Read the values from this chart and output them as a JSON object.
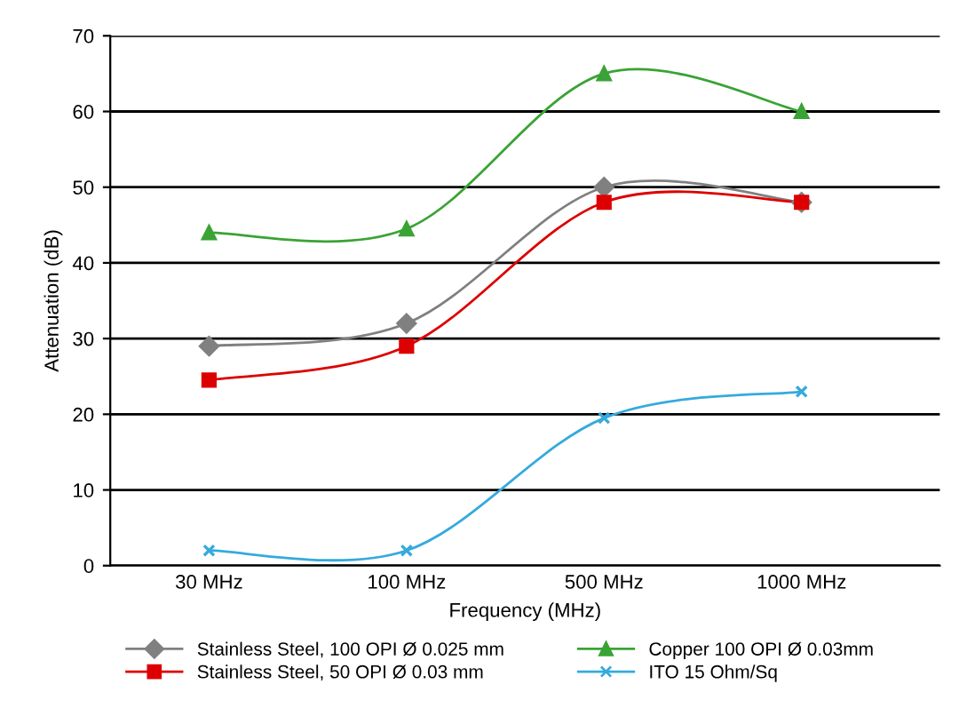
{
  "chart_data": {
    "type": "line",
    "xlabel": "Frequency (MHz)",
    "ylabel": "Attenuation (dB)",
    "categories": [
      "30 MHz",
      "100 MHz",
      "500 MHz",
      "1000 MHz"
    ],
    "series": [
      {
        "name": "Stainless Steel, 100 OPI Ø 0.025 mm",
        "color": "#808080",
        "marker": "diamond",
        "values": [
          29,
          32,
          50,
          48
        ]
      },
      {
        "name": "Stainless Steel, 50 OPI Ø 0.03 mm",
        "color": "#dd0000",
        "marker": "square",
        "values": [
          24.5,
          29,
          48,
          48
        ]
      },
      {
        "name": "Copper 100 OPI Ø 0.03mm",
        "color": "#3aa335",
        "marker": "triangle",
        "values": [
          44,
          44.5,
          65,
          60
        ]
      },
      {
        "name": "ITO 15 Ohm/Sq",
        "color": "#35aadd",
        "marker": "cross",
        "values": [
          2,
          2,
          19.5,
          23
        ]
      }
    ],
    "ylim": [
      0,
      70
    ],
    "yticks": [
      0,
      10,
      20,
      30,
      40,
      50,
      60,
      70
    ],
    "grid": "y",
    "legend": "bottom",
    "line_style": "solid"
  }
}
